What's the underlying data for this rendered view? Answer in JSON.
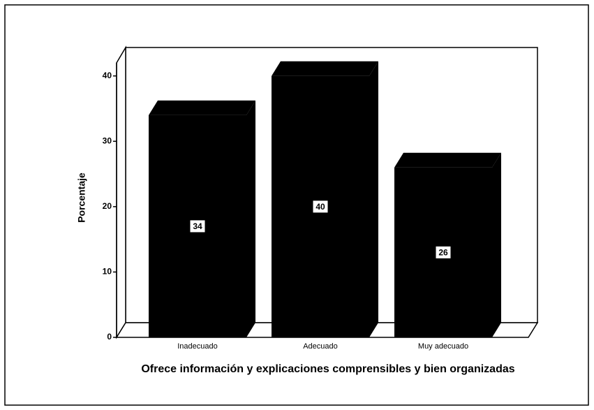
{
  "chart_data": {
    "type": "bar3d",
    "categories": [
      "Inadecuado",
      "Adecuado",
      "Muy adecuado"
    ],
    "values": [
      34,
      40,
      26
    ],
    "color": "#000000",
    "ylabel": "Porcentaje",
    "xlabel": "Ofrece información y explicaciones comprensibles y bien organizadas",
    "ylim": [
      0,
      42
    ],
    "yticks": [
      0,
      10,
      20,
      30,
      40
    ]
  }
}
